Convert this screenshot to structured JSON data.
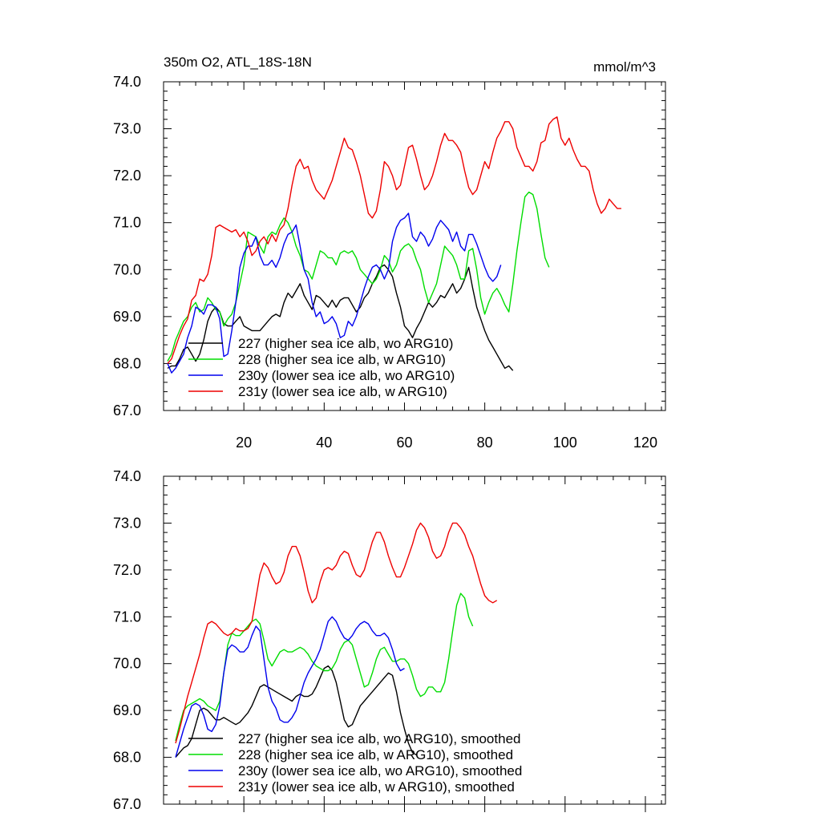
{
  "chart_data": [
    {
      "type": "line",
      "title": "350m O2, ATL_18S-18N",
      "units": "mmol/m^3",
      "xlabel": "",
      "ylabel": "",
      "xlim": [
        0,
        125
      ],
      "ylim": [
        67.0,
        74.0
      ],
      "x_ticks": [
        20,
        40,
        60,
        80,
        100,
        120
      ],
      "y_ticks": [
        "67.0",
        "68.0",
        "69.0",
        "70.0",
        "71.0",
        "72.0",
        "73.0",
        "74.0"
      ],
      "legend_position": "bottom-left",
      "series": [
        {
          "name": "227 (higher sea ice alb, wo ARG10)",
          "color": "#000000",
          "x_start": 1,
          "values": [
            67.9,
            67.95,
            67.95,
            68.1,
            68.3,
            68.35,
            68.2,
            68.05,
            68.2,
            68.5,
            68.9,
            69.1,
            69.2,
            69.1,
            68.85,
            68.8,
            68.8,
            68.9,
            69.0,
            68.8,
            68.75,
            68.7,
            68.7,
            68.7,
            68.8,
            68.9,
            69.0,
            69.05,
            69.0,
            69.3,
            69.5,
            69.4,
            69.55,
            69.7,
            69.45,
            69.3,
            69.15,
            69.45,
            69.4,
            69.3,
            69.2,
            69.35,
            69.2,
            69.35,
            69.4,
            69.4,
            69.25,
            69.1,
            69.2,
            69.4,
            69.5,
            69.7,
            69.85,
            70.05,
            70.1,
            70.0,
            69.85,
            69.5,
            69.2,
            68.8,
            68.7,
            68.55,
            68.75,
            68.9,
            69.1,
            69.3,
            69.2,
            69.3,
            69.45,
            69.4,
            69.55,
            69.7,
            69.5,
            69.6,
            69.8,
            70.05,
            69.6,
            69.2,
            68.95,
            68.7,
            68.5,
            68.35,
            68.2,
            68.05,
            67.9,
            67.95,
            67.85
          ]
        },
        {
          "name": "228 (higher sea ice alb, w ARG10)",
          "color": "#00dd00",
          "x_start": 1,
          "values": [
            68.05,
            68.2,
            68.5,
            68.7,
            68.9,
            69.0,
            69.2,
            69.3,
            69.1,
            69.15,
            69.4,
            69.3,
            69.15,
            69.1,
            68.8,
            68.95,
            69.05,
            69.3,
            69.7,
            70.1,
            70.8,
            70.75,
            70.7,
            70.5,
            70.35,
            70.7,
            70.8,
            70.75,
            70.95,
            71.1,
            71.0,
            70.8,
            70.5,
            70.3,
            70.0,
            69.95,
            69.8,
            70.1,
            70.4,
            70.35,
            70.25,
            70.25,
            70.1,
            70.35,
            70.4,
            70.35,
            70.4,
            70.25,
            70.0,
            69.9,
            69.8,
            69.7,
            69.8,
            70.0,
            70.3,
            70.2,
            69.95,
            70.1,
            70.4,
            70.5,
            70.55,
            70.45,
            70.2,
            70.0,
            69.6,
            69.3,
            69.5,
            69.7,
            70.1,
            70.5,
            70.4,
            70.3,
            70.1,
            69.8,
            69.8,
            70.4,
            70.45,
            70.0,
            69.4,
            69.05,
            69.3,
            69.5,
            69.6,
            69.45,
            69.25,
            69.1,
            69.7,
            70.4,
            71.0,
            71.55,
            71.65,
            71.6,
            71.3,
            70.75,
            70.25,
            70.05
          ]
        },
        {
          "name": "230y (lower sea ice alb, wo ARG10)",
          "color": "#0000ee",
          "x_start": 1,
          "values": [
            68.0,
            67.8,
            67.9,
            68.05,
            68.2,
            68.55,
            68.8,
            69.2,
            69.15,
            69.05,
            69.25,
            69.25,
            69.2,
            68.95,
            68.15,
            68.2,
            68.7,
            69.3,
            70.05,
            70.35,
            70.5,
            70.5,
            70.7,
            70.3,
            70.1,
            70.1,
            70.2,
            70.05,
            70.25,
            70.55,
            70.75,
            70.8,
            70.95,
            70.5,
            70.0,
            69.8,
            69.3,
            69.0,
            69.1,
            68.85,
            68.9,
            69.0,
            68.85,
            68.55,
            68.6,
            68.9,
            68.8,
            69.0,
            69.3,
            69.6,
            69.85,
            70.05,
            70.1,
            70.0,
            69.8,
            70.0,
            70.6,
            70.9,
            71.05,
            71.1,
            71.2,
            70.7,
            70.6,
            70.8,
            70.7,
            70.5,
            70.65,
            70.9,
            71.05,
            70.95,
            70.85,
            70.6,
            70.8,
            70.5,
            70.4,
            70.75,
            70.75,
            70.55,
            70.3,
            70.05,
            69.85,
            69.75,
            69.85,
            70.1
          ]
        },
        {
          "name": "231y (lower sea ice alb, w ARG10)",
          "color": "#ee0000",
          "x_start": 1,
          "values": [
            68.0,
            68.1,
            68.35,
            68.6,
            68.8,
            68.95,
            69.35,
            69.45,
            69.8,
            69.75,
            69.9,
            70.3,
            70.9,
            70.95,
            70.9,
            70.85,
            70.8,
            70.85,
            70.7,
            70.8,
            70.6,
            70.3,
            70.4,
            70.6,
            70.7,
            70.55,
            70.75,
            70.6,
            70.85,
            70.95,
            71.3,
            71.8,
            72.2,
            72.35,
            72.15,
            72.2,
            71.9,
            71.7,
            71.6,
            71.5,
            71.7,
            71.9,
            72.2,
            72.5,
            72.8,
            72.6,
            72.55,
            72.3,
            72.0,
            71.6,
            71.2,
            71.1,
            71.25,
            71.7,
            72.3,
            72.2,
            72.0,
            71.7,
            71.8,
            72.2,
            72.6,
            72.65,
            72.35,
            72.0,
            71.7,
            71.8,
            72.0,
            72.3,
            72.65,
            72.9,
            72.75,
            72.75,
            72.65,
            72.5,
            72.1,
            71.75,
            71.6,
            71.7,
            72.0,
            72.3,
            72.15,
            72.5,
            72.8,
            72.95,
            73.15,
            73.15,
            73.0,
            72.6,
            72.4,
            72.2,
            72.2,
            72.1,
            72.3,
            72.7,
            72.75,
            73.1,
            73.2,
            73.25,
            72.8,
            72.65,
            72.8,
            72.55,
            72.35,
            72.2,
            72.2,
            72.1,
            71.7,
            71.4,
            71.2,
            71.3,
            71.5,
            71.4,
            71.3,
            71.3
          ]
        }
      ]
    },
    {
      "type": "line",
      "title": "",
      "units": "",
      "xlabel": "",
      "ylabel": "",
      "xlim": [
        0,
        125
      ],
      "ylim": [
        67.0,
        74.0
      ],
      "y_ticks": [
        "67.0",
        "68.0",
        "69.0",
        "70.0",
        "71.0",
        "72.0",
        "73.0",
        "74.0"
      ],
      "legend_position": "bottom-left",
      "series": [
        {
          "name": "227 (higher sea ice alb, wo ARG10), smoothed",
          "color": "#000000",
          "x_start": 3,
          "values": [
            68.0,
            68.1,
            68.2,
            68.25,
            68.4,
            68.7,
            69.0,
            69.05,
            69.0,
            68.9,
            68.8,
            68.8,
            68.85,
            68.8,
            68.75,
            68.7,
            68.75,
            68.85,
            68.95,
            69.1,
            69.3,
            69.5,
            69.55,
            69.5,
            69.45,
            69.4,
            69.35,
            69.3,
            69.25,
            69.2,
            69.3,
            69.35,
            69.3,
            69.3,
            69.35,
            69.5,
            69.7,
            69.9,
            69.95,
            69.85,
            69.6,
            69.2,
            68.8,
            68.65,
            68.7,
            68.9,
            69.1,
            69.2,
            69.3,
            69.4,
            69.5,
            69.6,
            69.7,
            69.8,
            69.75,
            69.4,
            68.95,
            68.6,
            68.3,
            68.1,
            68.05
          ]
        },
        {
          "name": "228 (higher sea ice alb, w ARG10), smoothed",
          "color": "#00dd00",
          "x_start": 3,
          "values": [
            68.35,
            68.7,
            69.0,
            69.1,
            69.15,
            69.2,
            69.25,
            69.2,
            69.1,
            69.05,
            69.0,
            69.2,
            69.8,
            70.4,
            70.65,
            70.6,
            70.6,
            70.7,
            70.8,
            70.9,
            70.95,
            70.85,
            70.5,
            70.1,
            69.95,
            70.1,
            70.25,
            70.3,
            70.25,
            70.25,
            70.3,
            70.35,
            70.3,
            70.2,
            70.05,
            69.95,
            69.9,
            69.85,
            69.85,
            69.9,
            70.05,
            70.3,
            70.45,
            70.5,
            70.4,
            70.1,
            69.8,
            69.5,
            69.55,
            69.8,
            70.1,
            70.3,
            70.35,
            70.2,
            70.05,
            70.05,
            70.1,
            70.1,
            70.0,
            69.75,
            69.45,
            69.3,
            69.35,
            69.5,
            69.5,
            69.4,
            69.4,
            69.6,
            70.1,
            70.7,
            71.25,
            71.5,
            71.4,
            71.0,
            70.8
          ]
        },
        {
          "name": "230y (lower sea ice alb, wo ARG10), smoothed",
          "color": "#0000ee",
          "x_start": 3,
          "values": [
            68.0,
            68.3,
            68.6,
            68.85,
            69.1,
            69.15,
            69.1,
            68.9,
            68.6,
            68.55,
            68.7,
            69.1,
            69.8,
            70.3,
            70.4,
            70.35,
            70.25,
            70.25,
            70.35,
            70.6,
            70.8,
            70.7,
            70.1,
            69.5,
            69.2,
            69.05,
            68.8,
            68.75,
            68.75,
            68.85,
            69.0,
            69.3,
            69.6,
            69.8,
            69.95,
            70.1,
            70.3,
            70.6,
            70.9,
            71.0,
            70.9,
            70.7,
            70.55,
            70.5,
            70.6,
            70.75,
            70.85,
            70.9,
            70.85,
            70.7,
            70.6,
            70.6,
            70.65,
            70.55,
            70.3,
            70.0,
            69.85,
            69.9
          ]
        },
        {
          "name": "231y (lower sea ice alb, w ARG10), smoothed",
          "color": "#ee0000",
          "x_start": 3,
          "values": [
            68.3,
            68.6,
            68.95,
            69.3,
            69.6,
            69.9,
            70.2,
            70.55,
            70.85,
            70.9,
            70.85,
            70.75,
            70.65,
            70.6,
            70.65,
            70.75,
            70.7,
            70.7,
            70.75,
            70.9,
            71.4,
            71.9,
            72.15,
            72.05,
            71.85,
            71.7,
            71.75,
            71.95,
            72.3,
            72.5,
            72.5,
            72.3,
            71.95,
            71.55,
            71.3,
            71.4,
            71.75,
            72.0,
            72.05,
            72.0,
            72.1,
            72.3,
            72.4,
            72.35,
            72.1,
            71.9,
            71.85,
            72.0,
            72.3,
            72.6,
            72.8,
            72.8,
            72.6,
            72.3,
            72.05,
            71.85,
            71.85,
            72.05,
            72.3,
            72.55,
            72.85,
            73.0,
            72.9,
            72.7,
            72.4,
            72.25,
            72.3,
            72.5,
            72.8,
            73.0,
            73.0,
            72.9,
            72.75,
            72.5,
            72.3,
            72.0,
            71.7,
            71.45,
            71.35,
            71.3,
            71.35
          ]
        }
      ]
    }
  ]
}
